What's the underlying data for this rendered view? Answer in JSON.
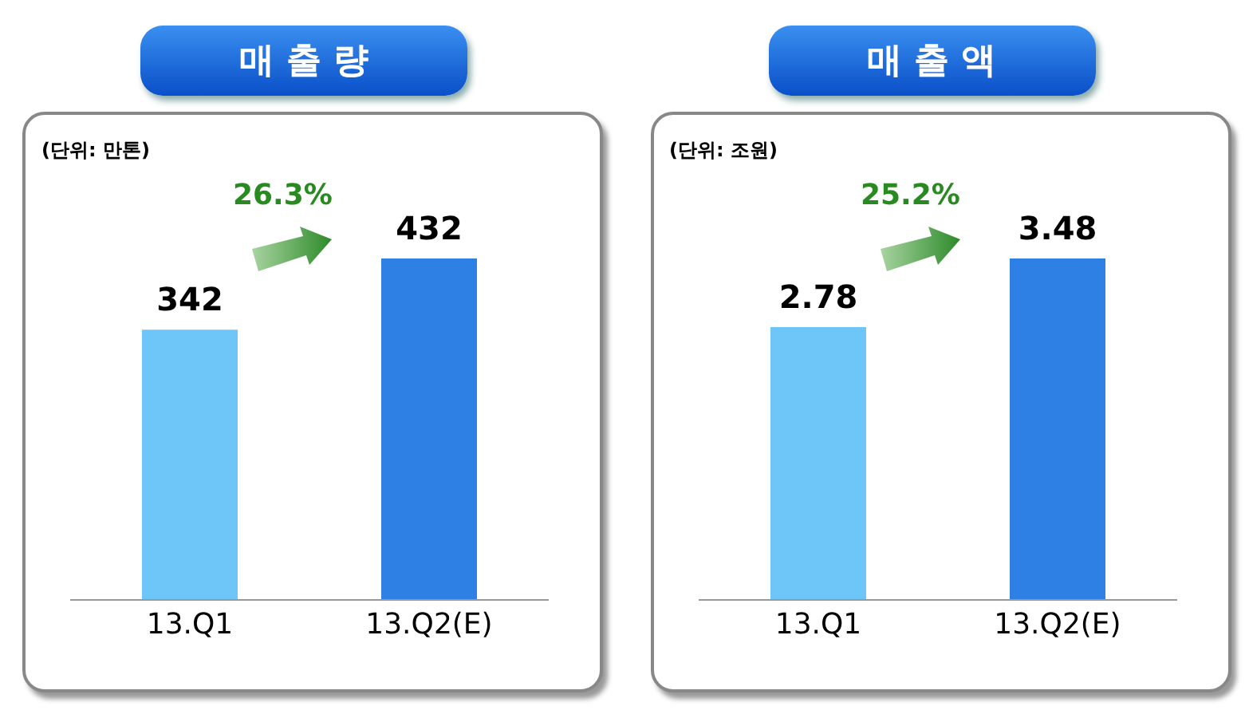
{
  "chart_data": [
    {
      "type": "bar",
      "title": "매 출 량",
      "categories": [
        "13.Q1",
        "13.Q2(E)"
      ],
      "values": [
        342,
        432
      ],
      "colors": [
        "#6ec6f8",
        "#2f80e4"
      ],
      "data_labels": true,
      "annotations": [
        "(단위: 만톤)",
        "26.3%"
      ]
    },
    {
      "type": "bar",
      "title": "매 출 액",
      "categories": [
        "13.Q1",
        "13.Q2(E)"
      ],
      "values": [
        2.78,
        3.48
      ],
      "colors": [
        "#6ec6f8",
        "#2f80e4"
      ],
      "data_labels": true,
      "annotations": [
        "(단위: 조원)",
        "25.2%"
      ]
    }
  ]
}
